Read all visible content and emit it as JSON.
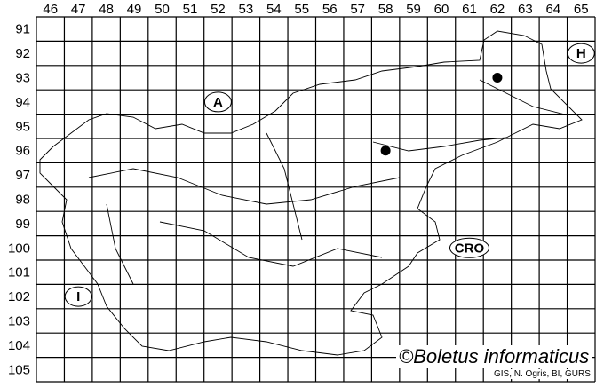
{
  "map": {
    "columns": [
      "46",
      "47",
      "48",
      "49",
      "50",
      "51",
      "52",
      "53",
      "54",
      "55",
      "56",
      "57",
      "58",
      "59",
      "60",
      "61",
      "62",
      "63",
      "64",
      "65"
    ],
    "rows": [
      "91",
      "92",
      "93",
      "94",
      "95",
      "96",
      "97",
      "98",
      "99",
      "100",
      "101",
      "102",
      "103",
      "104",
      "105"
    ],
    "country_labels": [
      {
        "text": "A",
        "col": "52",
        "row": "94"
      },
      {
        "text": "H",
        "col": "65",
        "row": "92"
      },
      {
        "text": "CRO",
        "col": "61",
        "row": "100"
      },
      {
        "text": "I",
        "col": "47",
        "row": "102"
      }
    ],
    "records": [
      {
        "col": "62",
        "row": "93"
      },
      {
        "col": "58",
        "row": "96"
      }
    ],
    "colors": {
      "grid": "#000000",
      "background": "#ffffff",
      "record": "#000000"
    }
  },
  "copyright": "©Boletus informaticus",
  "credit": "GIS, N. Ogris, BI, GURS"
}
